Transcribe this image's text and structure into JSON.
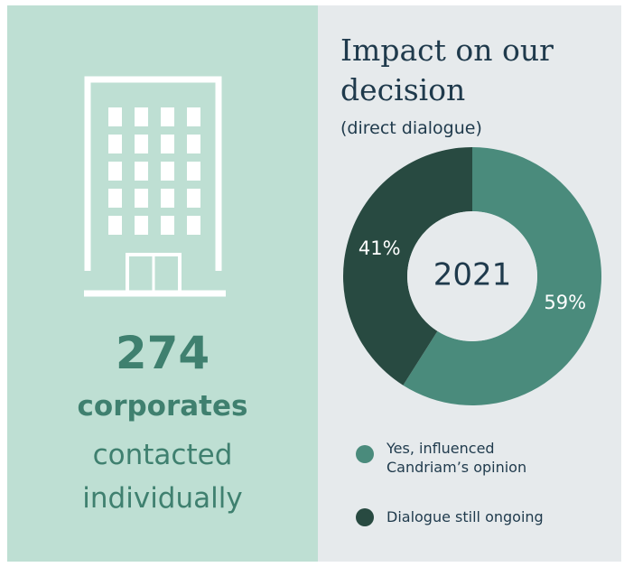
{
  "chart_data": {
    "type": "donut",
    "title": "Impact on our decision",
    "subtitle": "(direct dialogue)",
    "center_label": "2021",
    "categories": [
      "Yes, influenced Candriam’s opinion",
      "Dialogue still ongoing"
    ],
    "values": [
      59,
      41
    ],
    "value_labels": [
      "59%",
      "41%"
    ],
    "colors": [
      "#4a8b7c",
      "#284a41"
    ]
  },
  "stat": {
    "value": 274,
    "label_bold": "corporates",
    "label": "contacted individually"
  }
}
